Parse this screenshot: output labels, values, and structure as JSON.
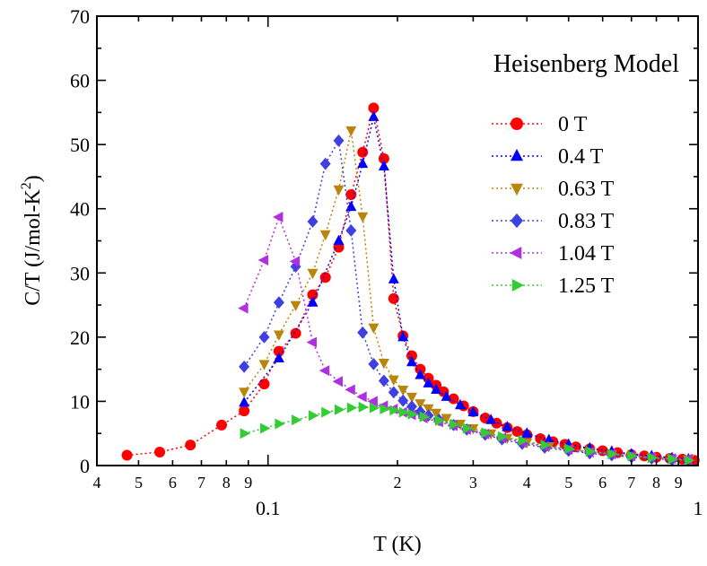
{
  "chart_data": {
    "type": "scatter",
    "annotation": "Heisenberg Model",
    "xlabel": "T (K)",
    "ylabel_main": "C/T (J/mol-K",
    "ylabel_sup": "2",
    "ylabel_close": ")",
    "x_scale": "log",
    "xlim": [
      0.04,
      1.0
    ],
    "ylim": [
      0,
      70
    ],
    "y_ticks": [
      0,
      10,
      20,
      30,
      40,
      50,
      60,
      70
    ],
    "x_major_labels": [
      {
        "value": 0.1,
        "label": "0.1"
      },
      {
        "value": 1,
        "label": "1"
      }
    ],
    "x_minor_labels": [
      {
        "value": 0.04,
        "label": "4"
      },
      {
        "value": 0.05,
        "label": "5"
      },
      {
        "value": 0.06,
        "label": "6"
      },
      {
        "value": 0.07,
        "label": "7"
      },
      {
        "value": 0.08,
        "label": "8"
      },
      {
        "value": 0.09,
        "label": "9"
      },
      {
        "value": 0.2,
        "label": "2"
      },
      {
        "value": 0.3,
        "label": "3"
      },
      {
        "value": 0.4,
        "label": "4"
      },
      {
        "value": 0.5,
        "label": "5"
      },
      {
        "value": 0.6,
        "label": "6"
      },
      {
        "value": 0.7,
        "label": "7"
      },
      {
        "value": 0.8,
        "label": "8"
      },
      {
        "value": 0.9,
        "label": "9"
      }
    ],
    "grid": false,
    "legend_position": "right",
    "series": [
      {
        "name": "0 T",
        "color": "#ff0000",
        "marker": "circle",
        "points": [
          [
            0.047,
            1.6
          ],
          [
            0.056,
            2.1
          ],
          [
            0.066,
            3.2
          ],
          [
            0.078,
            6.3
          ],
          [
            0.088,
            8.5
          ],
          [
            0.098,
            12.7
          ],
          [
            0.106,
            17.8
          ],
          [
            0.116,
            20.6
          ],
          [
            0.127,
            26.6
          ],
          [
            0.136,
            29.3
          ],
          [
            0.146,
            34.0
          ],
          [
            0.156,
            42.2
          ],
          [
            0.166,
            48.8
          ],
          [
            0.176,
            55.7
          ],
          [
            0.186,
            47.8
          ],
          [
            0.196,
            26.0
          ],
          [
            0.206,
            20.2
          ],
          [
            0.216,
            17.1
          ],
          [
            0.226,
            15.0
          ],
          [
            0.236,
            13.6
          ],
          [
            0.246,
            12.5
          ],
          [
            0.256,
            11.5
          ],
          [
            0.27,
            10.4
          ],
          [
            0.285,
            9.3
          ],
          [
            0.3,
            8.4
          ],
          [
            0.32,
            7.4
          ],
          [
            0.34,
            6.6
          ],
          [
            0.36,
            5.9
          ],
          [
            0.38,
            5.3
          ],
          [
            0.4,
            4.8
          ],
          [
            0.43,
            4.2
          ],
          [
            0.46,
            3.7
          ],
          [
            0.49,
            3.3
          ],
          [
            0.52,
            2.9
          ],
          [
            0.56,
            2.6
          ],
          [
            0.6,
            2.3
          ],
          [
            0.65,
            2.0
          ],
          [
            0.7,
            1.7
          ],
          [
            0.75,
            1.5
          ],
          [
            0.8,
            1.3
          ],
          [
            0.86,
            1.1
          ],
          [
            0.92,
            1.0
          ],
          [
            0.98,
            0.8
          ]
        ]
      },
      {
        "name": "0.4 T",
        "color": "#0000ff",
        "marker": "triangle-up",
        "points": [
          [
            0.088,
            9.8
          ],
          [
            0.106,
            16.7
          ],
          [
            0.127,
            25.4
          ],
          [
            0.146,
            35.0
          ],
          [
            0.156,
            40.3
          ],
          [
            0.166,
            47.0
          ],
          [
            0.176,
            54.3
          ],
          [
            0.186,
            46.6
          ],
          [
            0.196,
            29.0
          ],
          [
            0.206,
            20.0
          ],
          [
            0.216,
            16.1
          ],
          [
            0.226,
            14.1
          ],
          [
            0.236,
            12.8
          ],
          [
            0.246,
            11.8
          ],
          [
            0.26,
            10.7
          ],
          [
            0.28,
            9.4
          ],
          [
            0.3,
            8.3
          ],
          [
            0.33,
            7.1
          ],
          [
            0.36,
            6.0
          ],
          [
            0.4,
            5.0
          ],
          [
            0.45,
            4.0
          ],
          [
            0.5,
            3.3
          ],
          [
            0.56,
            2.7
          ],
          [
            0.63,
            2.2
          ],
          [
            0.7,
            1.8
          ],
          [
            0.78,
            1.5
          ],
          [
            0.87,
            1.2
          ],
          [
            0.95,
            1.0
          ]
        ]
      },
      {
        "name": "0.63 T",
        "color": "#b8860b",
        "marker": "triangle-down",
        "points": [
          [
            0.088,
            11.5
          ],
          [
            0.098,
            15.8
          ],
          [
            0.106,
            20.4
          ],
          [
            0.116,
            25.0
          ],
          [
            0.127,
            30.0
          ],
          [
            0.136,
            36.0
          ],
          [
            0.146,
            43.0
          ],
          [
            0.156,
            52.2
          ],
          [
            0.166,
            38.8
          ],
          [
            0.176,
            21.5
          ],
          [
            0.186,
            16.0
          ],
          [
            0.196,
            13.4
          ],
          [
            0.206,
            11.8
          ],
          [
            0.216,
            10.7
          ],
          [
            0.226,
            9.7
          ],
          [
            0.236,
            8.9
          ],
          [
            0.246,
            8.2
          ],
          [
            0.26,
            7.4
          ],
          [
            0.28,
            6.5
          ],
          [
            0.3,
            5.8
          ],
          [
            0.33,
            5.0
          ],
          [
            0.36,
            4.3
          ],
          [
            0.4,
            3.6
          ],
          [
            0.45,
            3.0
          ],
          [
            0.5,
            2.5
          ],
          [
            0.56,
            2.1
          ],
          [
            0.63,
            1.7
          ],
          [
            0.7,
            1.4
          ],
          [
            0.78,
            1.2
          ],
          [
            0.87,
            1.0
          ],
          [
            0.95,
            0.9
          ]
        ]
      },
      {
        "name": "0.83 T",
        "color": "#4040e0",
        "marker": "diamond",
        "points": [
          [
            0.088,
            15.4
          ],
          [
            0.098,
            20.0
          ],
          [
            0.106,
            25.4
          ],
          [
            0.116,
            31.0
          ],
          [
            0.127,
            38.0
          ],
          [
            0.136,
            47.0
          ],
          [
            0.146,
            50.6
          ],
          [
            0.156,
            36.6
          ],
          [
            0.166,
            20.7
          ],
          [
            0.176,
            15.8
          ],
          [
            0.186,
            13.2
          ],
          [
            0.196,
            11.4
          ],
          [
            0.206,
            10.1
          ],
          [
            0.216,
            9.2
          ],
          [
            0.226,
            8.4
          ],
          [
            0.236,
            7.8
          ],
          [
            0.25,
            7.1
          ],
          [
            0.27,
            6.3
          ],
          [
            0.29,
            5.6
          ],
          [
            0.32,
            4.8
          ],
          [
            0.35,
            4.1
          ],
          [
            0.39,
            3.4
          ],
          [
            0.44,
            2.8
          ],
          [
            0.5,
            2.3
          ],
          [
            0.56,
            1.9
          ],
          [
            0.63,
            1.6
          ],
          [
            0.7,
            1.3
          ],
          [
            0.78,
            1.1
          ],
          [
            0.87,
            0.9
          ],
          [
            0.95,
            0.8
          ]
        ]
      },
      {
        "name": "1.04 T",
        "color": "#b030e0",
        "marker": "triangle-left",
        "points": [
          [
            0.088,
            24.5
          ],
          [
            0.098,
            32.0
          ],
          [
            0.106,
            38.7
          ],
          [
            0.116,
            31.8
          ],
          [
            0.127,
            19.2
          ],
          [
            0.136,
            14.8
          ],
          [
            0.146,
            13.1
          ],
          [
            0.156,
            11.8
          ],
          [
            0.166,
            10.7
          ],
          [
            0.176,
            10.0
          ],
          [
            0.186,
            9.3
          ],
          [
            0.196,
            8.8
          ],
          [
            0.206,
            8.3
          ],
          [
            0.216,
            7.9
          ],
          [
            0.23,
            7.4
          ],
          [
            0.25,
            6.8
          ],
          [
            0.27,
            6.2
          ],
          [
            0.29,
            5.6
          ],
          [
            0.32,
            4.9
          ],
          [
            0.35,
            4.3
          ],
          [
            0.39,
            3.6
          ],
          [
            0.44,
            3.0
          ],
          [
            0.5,
            2.5
          ],
          [
            0.56,
            2.1
          ],
          [
            0.63,
            1.8
          ],
          [
            0.7,
            1.5
          ],
          [
            0.78,
            1.3
          ],
          [
            0.87,
            1.1
          ],
          [
            0.95,
            1.0
          ]
        ]
      },
      {
        "name": "1.25 T",
        "color": "#33cc33",
        "marker": "triangle-right",
        "points": [
          [
            0.088,
            5.0
          ],
          [
            0.098,
            5.8
          ],
          [
            0.106,
            6.5
          ],
          [
            0.116,
            7.1
          ],
          [
            0.127,
            7.8
          ],
          [
            0.136,
            8.3
          ],
          [
            0.146,
            8.7
          ],
          [
            0.156,
            9.0
          ],
          [
            0.166,
            9.1
          ],
          [
            0.176,
            9.0
          ],
          [
            0.186,
            8.8
          ],
          [
            0.196,
            8.6
          ],
          [
            0.206,
            8.3
          ],
          [
            0.216,
            8.0
          ],
          [
            0.23,
            7.6
          ],
          [
            0.25,
            7.0
          ],
          [
            0.27,
            6.4
          ],
          [
            0.29,
            5.8
          ],
          [
            0.32,
            5.1
          ],
          [
            0.35,
            4.5
          ],
          [
            0.39,
            3.9
          ],
          [
            0.44,
            3.2
          ],
          [
            0.5,
            2.6
          ],
          [
            0.56,
            2.2
          ],
          [
            0.63,
            1.8
          ],
          [
            0.7,
            1.5
          ],
          [
            0.78,
            1.2
          ],
          [
            0.87,
            1.0
          ],
          [
            0.95,
            0.8
          ]
        ]
      }
    ]
  }
}
